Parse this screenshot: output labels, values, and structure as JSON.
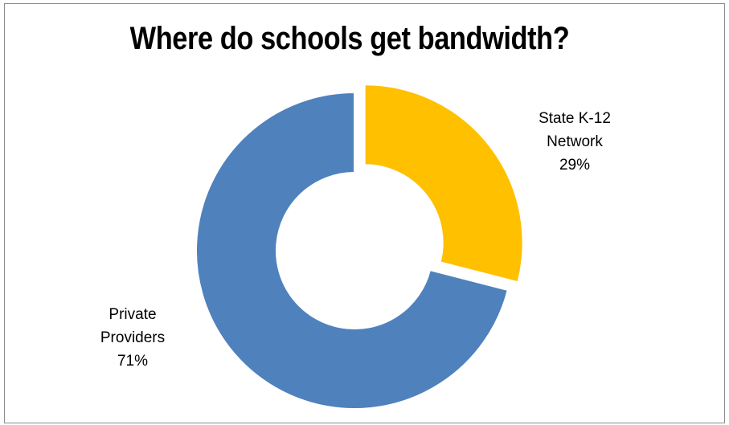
{
  "chart_data": {
    "type": "pie",
    "style": "donut-exploded",
    "title": "Where do schools get bandwidth?",
    "slices": [
      {
        "name": "State K-12 Network",
        "label_lines": [
          "State K-12",
          "Network"
        ],
        "value": 29,
        "value_label": "29%",
        "color": "#FFC000",
        "exploded": true
      },
      {
        "name": "Private Providers",
        "label_lines": [
          "Private",
          "Providers"
        ],
        "value": 71,
        "value_label": "71%",
        "color": "#4F81BD",
        "exploded": false
      }
    ],
    "legend": "none"
  }
}
